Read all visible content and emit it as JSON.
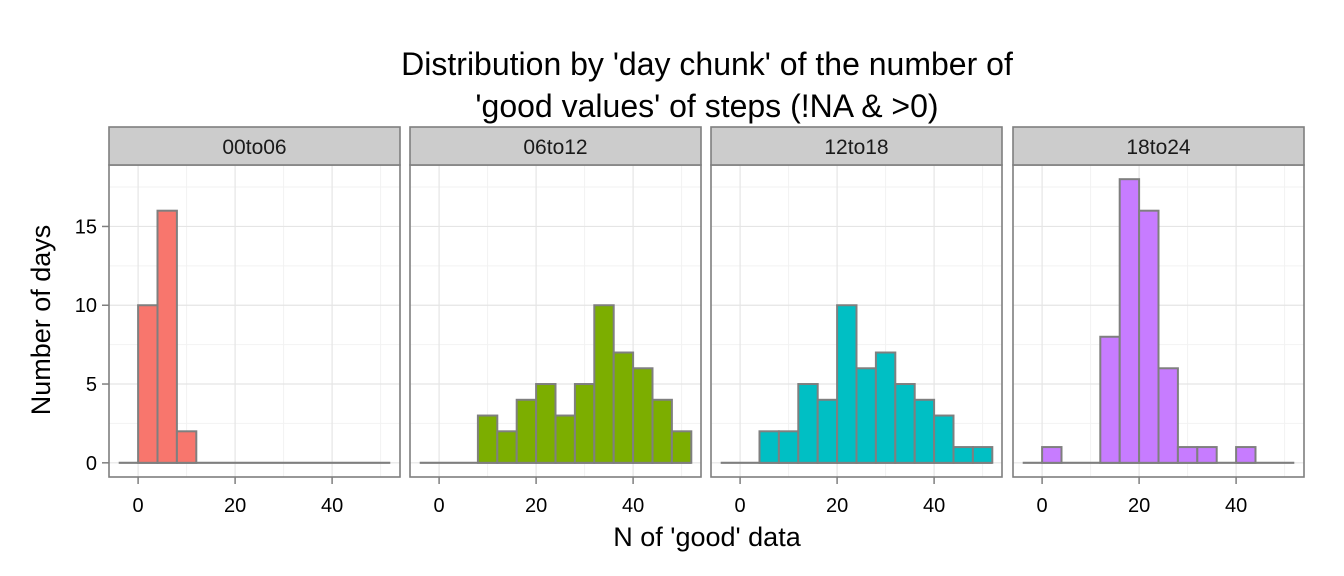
{
  "chart_data": {
    "type": "bar",
    "chart_type": "faceted-histogram",
    "title_lines": [
      "Distribution by 'day chunk' of the number of",
      "'good values' of steps (!NA & >0)"
    ],
    "xlabel": "N of 'good' data",
    "ylabel": "Number of days",
    "xlim": [
      -6,
      54
    ],
    "ylim": [
      -0.9,
      18.9
    ],
    "x_ticks": [
      0,
      20,
      40
    ],
    "y_ticks": [
      0,
      5,
      10,
      15
    ],
    "bin_width": 4,
    "baseline_range": [
      -4,
      52
    ],
    "grid": true,
    "legend": "none",
    "bar_outline_color": "#7f7f7f",
    "facets": [
      {
        "label": "00to06",
        "color": "#F8766D",
        "bins": [
          {
            "x0": 0,
            "x1": 4,
            "count": 10
          },
          {
            "x0": 4,
            "x1": 8,
            "count": 16
          },
          {
            "x0": 8,
            "x1": 12,
            "count": 2
          }
        ]
      },
      {
        "label": "06to12",
        "color": "#7CAE00",
        "bins": [
          {
            "x0": 8,
            "x1": 12,
            "count": 3
          },
          {
            "x0": 12,
            "x1": 16,
            "count": 2
          },
          {
            "x0": 16,
            "x1": 20,
            "count": 4
          },
          {
            "x0": 20,
            "x1": 24,
            "count": 5
          },
          {
            "x0": 24,
            "x1": 28,
            "count": 3
          },
          {
            "x0": 28,
            "x1": 32,
            "count": 5
          },
          {
            "x0": 32,
            "x1": 36,
            "count": 10
          },
          {
            "x0": 36,
            "x1": 40,
            "count": 7
          },
          {
            "x0": 40,
            "x1": 44,
            "count": 6
          },
          {
            "x0": 44,
            "x1": 48,
            "count": 4
          },
          {
            "x0": 48,
            "x1": 52,
            "count": 2
          }
        ]
      },
      {
        "label": "12to18",
        "color": "#00BFC4",
        "bins": [
          {
            "x0": 4,
            "x1": 8,
            "count": 2
          },
          {
            "x0": 8,
            "x1": 12,
            "count": 2
          },
          {
            "x0": 12,
            "x1": 16,
            "count": 5
          },
          {
            "x0": 16,
            "x1": 20,
            "count": 4
          },
          {
            "x0": 20,
            "x1": 24,
            "count": 10
          },
          {
            "x0": 24,
            "x1": 28,
            "count": 6
          },
          {
            "x0": 28,
            "x1": 32,
            "count": 7
          },
          {
            "x0": 32,
            "x1": 36,
            "count": 5
          },
          {
            "x0": 36,
            "x1": 40,
            "count": 4
          },
          {
            "x0": 40,
            "x1": 44,
            "count": 3
          },
          {
            "x0": 44,
            "x1": 48,
            "count": 1
          },
          {
            "x0": 48,
            "x1": 52,
            "count": 1
          }
        ]
      },
      {
        "label": "18to24",
        "color": "#C77CFF",
        "bins": [
          {
            "x0": 0,
            "x1": 4,
            "count": 1
          },
          {
            "x0": 12,
            "x1": 16,
            "count": 8
          },
          {
            "x0": 16,
            "x1": 20,
            "count": 18
          },
          {
            "x0": 20,
            "x1": 24,
            "count": 16
          },
          {
            "x0": 24,
            "x1": 28,
            "count": 6
          },
          {
            "x0": 28,
            "x1": 32,
            "count": 1
          },
          {
            "x0": 32,
            "x1": 36,
            "count": 1
          },
          {
            "x0": 40,
            "x1": 44,
            "count": 1
          }
        ]
      }
    ]
  }
}
